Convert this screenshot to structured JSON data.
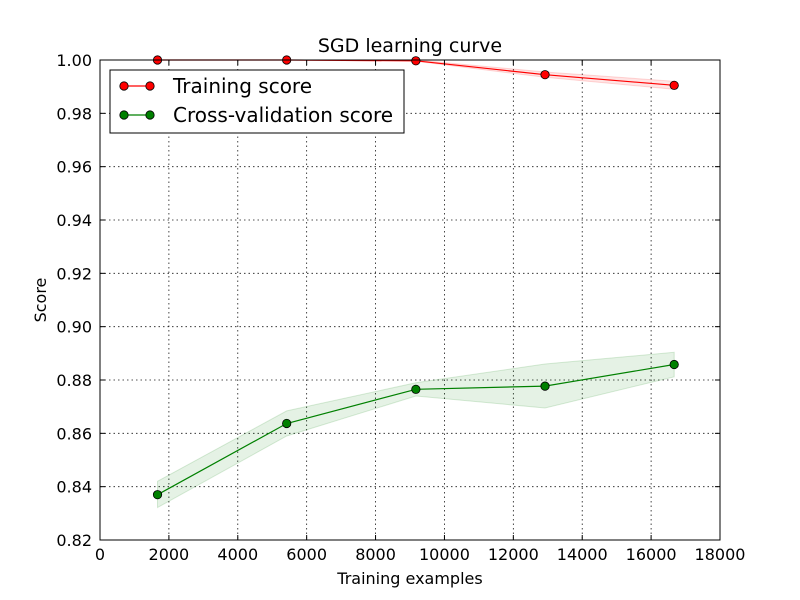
{
  "chart_data": {
    "type": "line",
    "title": "SGD learning curve",
    "xlabel": "Training examples",
    "ylabel": "Score",
    "xlim": [
      0,
      18000
    ],
    "ylim": [
      0.82,
      1.0
    ],
    "xticks": [
      0,
      2000,
      4000,
      6000,
      8000,
      10000,
      12000,
      14000,
      16000,
      18000
    ],
    "yticks": [
      "0.82",
      "0.84",
      "0.86",
      "0.88",
      "0.90",
      "0.92",
      "0.94",
      "0.96",
      "0.98",
      "1.00"
    ],
    "grid": true,
    "legend_position": "top-left",
    "x": [
      1670,
      5420,
      9170,
      12920,
      16670
    ],
    "series": [
      {
        "name": "Training score",
        "color": "#ff0000",
        "values": [
          1.0,
          1.0,
          0.9997,
          0.9945,
          0.9905
        ],
        "band_lower": [
          1.0,
          1.0,
          0.9995,
          0.9935,
          0.989
        ],
        "band_upper": [
          1.0,
          1.0,
          1.0,
          0.9955,
          0.992
        ]
      },
      {
        "name": "Cross-validation score",
        "color": "#008000",
        "values": [
          0.837,
          0.8637,
          0.8765,
          0.8777,
          0.8858
        ],
        "band_lower": [
          0.8322,
          0.859,
          0.874,
          0.8695,
          0.8812
        ],
        "band_upper": [
          0.842,
          0.8684,
          0.879,
          0.886,
          0.8904
        ]
      }
    ]
  }
}
